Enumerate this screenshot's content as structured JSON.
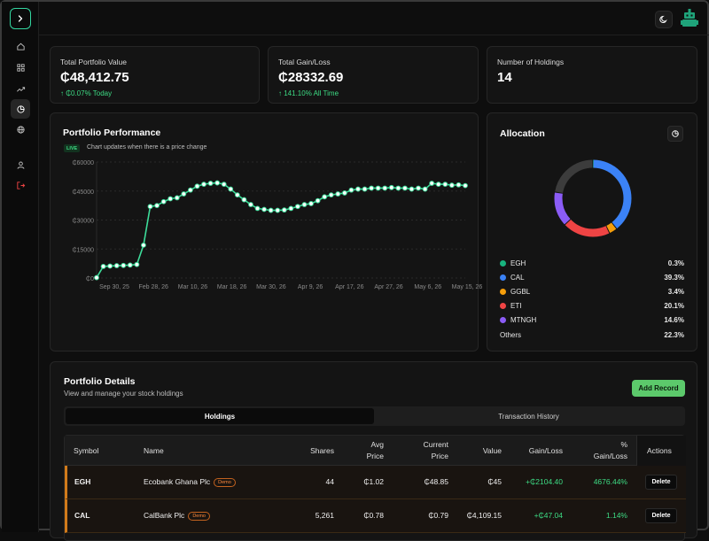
{
  "sidebar": {
    "toggle": "chevron-right-icon",
    "items": [
      {
        "icon": "home-icon"
      },
      {
        "icon": "grid-icon"
      },
      {
        "icon": "trending-up-icon"
      },
      {
        "icon": "pie-chart-icon",
        "active": true
      },
      {
        "icon": "globe-icon"
      },
      {
        "icon": "user-icon"
      },
      {
        "icon": "logout-icon"
      }
    ]
  },
  "stats": [
    {
      "label": "Total Portfolio Value",
      "value": "₵48,412.75",
      "sub": "↑ ₵0.07% Today"
    },
    {
      "label": "Total Gain/Loss",
      "value": "₵28332.69",
      "sub": "↑ 141.10% All Time"
    },
    {
      "label": "Number of Holdings",
      "value": "14"
    }
  ],
  "performance": {
    "title": "Portfolio Performance",
    "live_badge": "LIVE",
    "live_text": "Chart updates when there is a price change"
  },
  "chart_data": {
    "type": "line",
    "title": "Portfolio Performance",
    "y_ticks": [
      "₵60000",
      "₵45000",
      "₵30000",
      "₵15000",
      "₵0"
    ],
    "x_ticks": [
      "Sep 30, 25",
      "Feb 28, 26",
      "Mar 10, 26",
      "Mar 18, 26",
      "Mar 30, 26",
      "Apr 9, 26",
      "Apr 17, 26",
      "Apr 27, 26",
      "May 6, 26",
      "May 15, 26"
    ],
    "ylim": [
      0,
      60000
    ],
    "grid": true,
    "color": "#3ddc9a",
    "values": [
      200,
      6000,
      6200,
      6400,
      6500,
      6700,
      7000,
      17000,
      37000,
      37500,
      39500,
      41000,
      41500,
      43500,
      45500,
      47500,
      48500,
      49000,
      49200,
      48500,
      46000,
      43000,
      40500,
      38000,
      36000,
      35500,
      35000,
      35000,
      35200,
      36000,
      37000,
      38000,
      38500,
      40000,
      42000,
      43000,
      43500,
      44000,
      45500,
      46000,
      46000,
      46500,
      46500,
      46500,
      46800,
      46500,
      46500,
      46000,
      46500,
      46000,
      49000,
      48500,
      48500,
      48000,
      48200,
      47800
    ]
  },
  "allocation": {
    "title": "Allocation",
    "button_icon": "pie-chart-icon",
    "legend": [
      {
        "name": "EGH",
        "value": "0.3%",
        "color": "#18b37e"
      },
      {
        "name": "CAL",
        "value": "39.3%",
        "color": "#3b82f6"
      },
      {
        "name": "GGBL",
        "value": "3.4%",
        "color": "#f59e0b"
      },
      {
        "name": "ETI",
        "value": "20.1%",
        "color": "#ef4444"
      },
      {
        "name": "MTNGH",
        "value": "14.6%",
        "color": "#8b5cf6"
      }
    ],
    "others": {
      "name": "Others",
      "value": "22.3%"
    }
  },
  "details": {
    "title": "Portfolio Details",
    "subtitle": "View and manage your stock holdings",
    "add_button": "Add Record",
    "tabs": [
      "Holdings",
      "Transaction History"
    ],
    "columns": [
      {
        "l1": "Symbol"
      },
      {
        "l1": "Name"
      },
      {
        "l1": "Shares"
      },
      {
        "l1": "Avg",
        "l2": "Price"
      },
      {
        "l1": "Current",
        "l2": "Price"
      },
      {
        "l1": "Value"
      },
      {
        "l1": "Gain/Loss"
      },
      {
        "l1": "%",
        "l2": "Gain/Loss"
      },
      {
        "l1": "Actions"
      }
    ],
    "rows": [
      {
        "symbol": "EGH",
        "name": "Ecobank Ghana Plc",
        "badge": "Demo",
        "shares": "44",
        "avg": "₵1.02",
        "current": "₵48.85",
        "value": "₵45",
        "gain": "+₵2104.40",
        "pct": "4676.44%",
        "action": "Delete"
      },
      {
        "symbol": "CAL",
        "name": "CalBank Plc",
        "badge": "Demo",
        "shares": "5,261",
        "avg": "₵0.78",
        "current": "₵0.79",
        "value": "₵4,109.15",
        "gain": "+₵47.04",
        "pct": "1.14%",
        "action": "Delete"
      }
    ]
  }
}
